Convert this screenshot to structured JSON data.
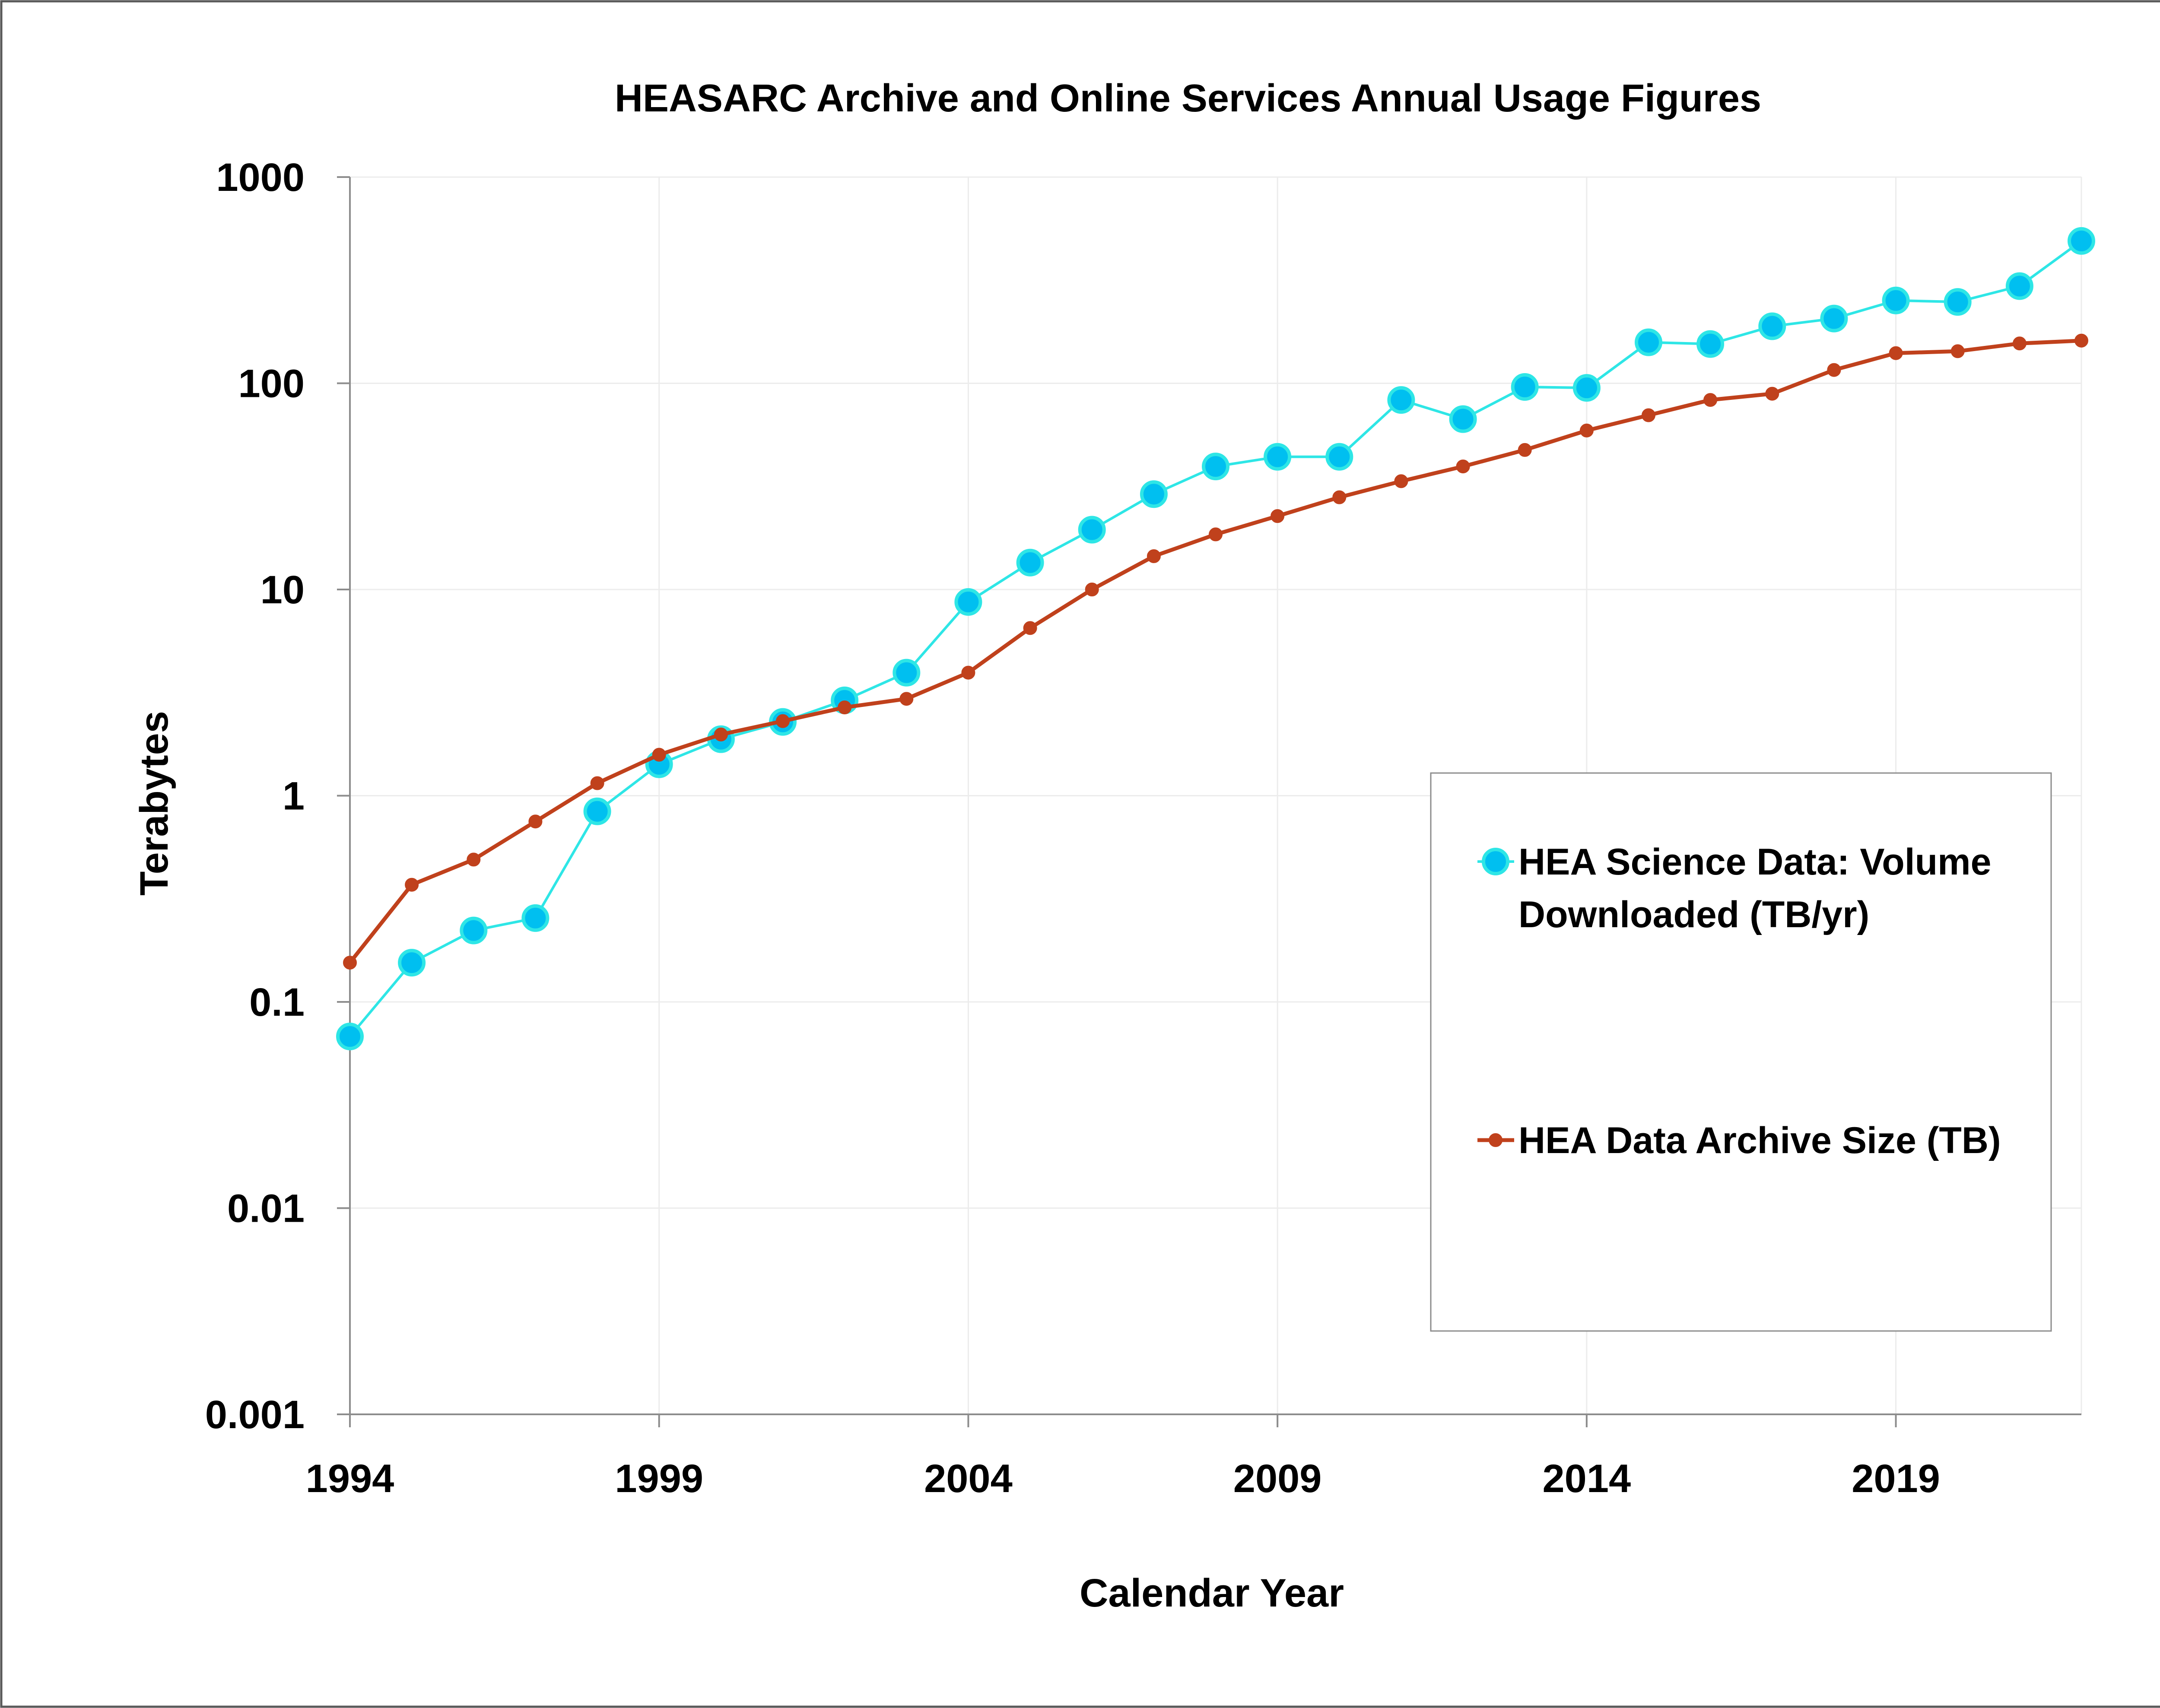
{
  "chart_data": {
    "type": "line",
    "title": "HEASARC Archive and Online Services Annual Usage Figures",
    "xlabel": "Calendar Year",
    "ylabel": "Terabytes",
    "yscale": "log",
    "ylim": [
      0.001,
      1000
    ],
    "xlim": [
      1994,
      2022
    ],
    "grid": true,
    "legend_position": "right",
    "x_ticks": [
      "1994",
      "1999",
      "2004",
      "2009",
      "2014",
      "2019"
    ],
    "y_ticks": [
      "0.001",
      "0.01",
      "0.1",
      "1",
      "10",
      "100",
      "1000"
    ],
    "x": [
      1994,
      1995,
      1996,
      1997,
      1998,
      1999,
      2000,
      2001,
      2002,
      2003,
      2004,
      2005,
      2006,
      2007,
      2008,
      2009,
      2010,
      2011,
      2012,
      2013,
      2014,
      2015,
      2016,
      2017,
      2018,
      2019,
      2020,
      2021,
      2022
    ],
    "series": [
      {
        "name": "HEA Science Data:  Volume Downloaded (TB/yr)",
        "legend_lines": [
          "HEA Science Data:  Volume",
          "Downloaded (TB/yr)"
        ],
        "color": "#00BFF0",
        "line_color": "#2EE6E6",
        "marker": "large-circle",
        "values": [
          0.068,
          0.155,
          0.222,
          0.255,
          0.84,
          1.42,
          1.88,
          2.28,
          2.9,
          3.95,
          8.7,
          13.5,
          19.5,
          29,
          39.5,
          44,
          44,
          83,
          67,
          96,
          95,
          158,
          155,
          189,
          206,
          252,
          248,
          296,
          490
        ]
      },
      {
        "name": "HEA Data Archive Size (TB)",
        "legend_lines": [
          "HEA Data Archive Size (TB)"
        ],
        "color": "#C0411C",
        "line_color": "#C0411C",
        "marker": "small-circle",
        "values": [
          0.155,
          0.37,
          0.49,
          0.75,
          1.15,
          1.58,
          1.98,
          2.3,
          2.68,
          2.95,
          3.95,
          6.5,
          10,
          14.5,
          18.5,
          22.7,
          28,
          33.5,
          39.5,
          47.5,
          59,
          70,
          83,
          89,
          116,
          140,
          143,
          156,
          161
        ]
      }
    ]
  }
}
